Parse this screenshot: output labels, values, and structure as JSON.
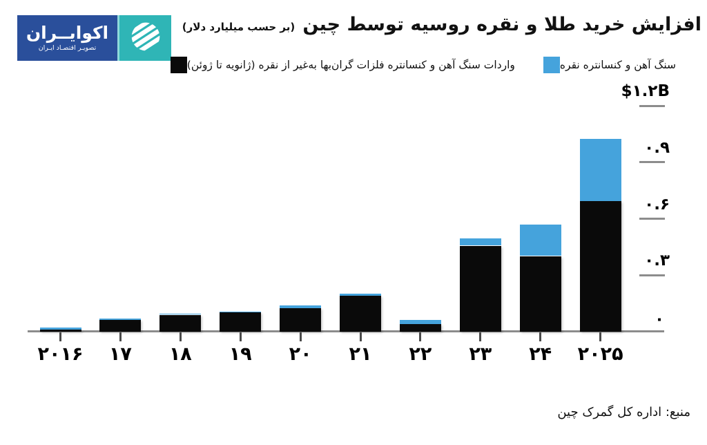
{
  "brand": {
    "name": "اکوایــران",
    "tagline": "تصویـر اقتصـاد ایـران",
    "panel_dark_color": "#2a4f9b",
    "panel_teal_color": "#2fb5b6"
  },
  "header": {
    "title": "افزایش خرید طلا و نقره روسیه توسط چین",
    "unit_note": "(بر حسب میلیارد دلار)"
  },
  "legend": {
    "items": [
      {
        "key": "black",
        "label": "واردات سنگ آهن و کنسانتره فلزات گران‌بها به‌غیر از نقره (ژانویه تا ژوئن)",
        "color": "#0a0a0a"
      },
      {
        "key": "blue",
        "label": "سنگ آهن و کنسانتره نقره",
        "color": "#45a3dc"
      }
    ]
  },
  "chart_data": {
    "type": "bar",
    "stacked": true,
    "title": "افزایش خرید طلا و نقره روسیه توسط چین",
    "unit": "میلیارد دلار",
    "categories": [
      "۲۰۱۶",
      "۱۷",
      "۱۸",
      "۱۹",
      "۲۰",
      "۲۱",
      "۲۲",
      "۲۳",
      "۲۴",
      "۲۰۲۵"
    ],
    "categories_western": [
      2016,
      2017,
      2018,
      2019,
      2020,
      2021,
      2022,
      2023,
      2024,
      2025
    ],
    "series": [
      {
        "name": "واردات سنگ آهن و کنسانتره فلزات گران‌بها به‌غیر از نقره (ژانویه تا ژوئن)",
        "color": "#0a0a0a",
        "values": [
          0.012,
          0.062,
          0.09,
          0.102,
          0.126,
          0.191,
          0.042,
          0.457,
          0.402,
          0.695
        ]
      },
      {
        "name": "سنگ آهن و کنسانتره نقره",
        "color": "#45a3dc",
        "values": [
          0.01,
          0.008,
          0.004,
          0.005,
          0.012,
          0.01,
          0.02,
          0.04,
          0.168,
          0.33
        ]
      }
    ],
    "ylim": [
      0,
      1.2
    ],
    "y_axis": {
      "side": "right",
      "ticks": [
        {
          "value": 0,
          "label": "۰"
        },
        {
          "value": 0.3,
          "label": "۰.۳"
        },
        {
          "value": 0.6,
          "label": "۰.۶"
        },
        {
          "value": 0.9,
          "label": "۰.۹"
        },
        {
          "value": 1.2,
          "label": "$۱.۲B"
        }
      ]
    },
    "grid": false,
    "legend_position": "top"
  },
  "source": "منبع: اداره کل گمرک چین"
}
